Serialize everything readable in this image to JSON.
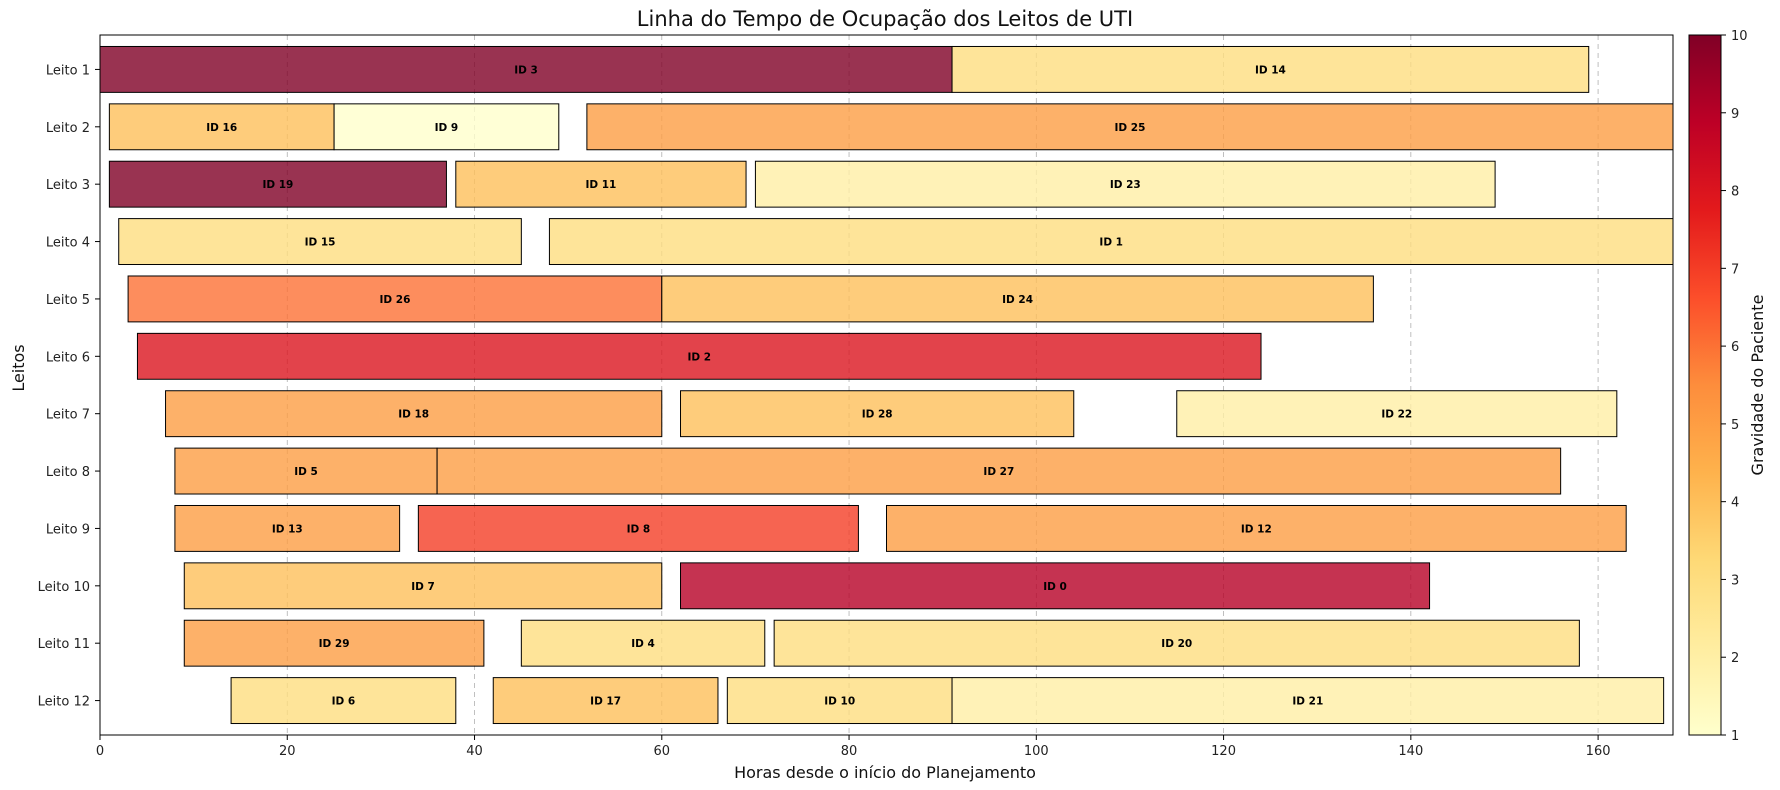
{
  "chart_data": {
    "type": "bar",
    "orientation": "horizontal-timeline",
    "title": "Linha do Tempo de Ocupação dos Leitos de UTI",
    "xlabel": "Horas desde o início do Planejamento",
    "ylabel": "Leitos",
    "xlim": [
      0,
      168
    ],
    "xticks": [
      0,
      20,
      40,
      60,
      80,
      100,
      120,
      140,
      160
    ],
    "grid": "vertical dashed",
    "categories": [
      "Leito 1",
      "Leito 2",
      "Leito 3",
      "Leito 4",
      "Leito 5",
      "Leito 6",
      "Leito 7",
      "Leito 8",
      "Leito 9",
      "Leito 10",
      "Leito 11",
      "Leito 12"
    ],
    "colorbar": {
      "label": "Gravidade do Paciente",
      "range": [
        1,
        10
      ],
      "ticks": [
        1,
        2,
        3,
        4,
        5,
        6,
        7,
        8,
        9,
        10
      ],
      "colormap": "YlOrRd"
    },
    "bars": [
      {
        "bed": "Leito 1",
        "label": "ID 3",
        "start": 0,
        "end": 91,
        "severity": 10
      },
      {
        "bed": "Leito 1",
        "label": "ID 14",
        "start": 91,
        "end": 159,
        "severity": 3
      },
      {
        "bed": "Leito 2",
        "label": "ID 16",
        "start": 1,
        "end": 25,
        "severity": 4
      },
      {
        "bed": "Leito 2",
        "label": "ID 9",
        "start": 25,
        "end": 49,
        "severity": 1
      },
      {
        "bed": "Leito 2",
        "label": "ID 25",
        "start": 52,
        "end": 168,
        "severity": 5
      },
      {
        "bed": "Leito 3",
        "label": "ID 19",
        "start": 1,
        "end": 37,
        "severity": 10
      },
      {
        "bed": "Leito 3",
        "label": "ID 11",
        "start": 38,
        "end": 69,
        "severity": 4
      },
      {
        "bed": "Leito 3",
        "label": "ID 23",
        "start": 70,
        "end": 149,
        "severity": 2
      },
      {
        "bed": "Leito 4",
        "label": "ID 15",
        "start": 2,
        "end": 45,
        "severity": 3
      },
      {
        "bed": "Leito 4",
        "label": "ID 1",
        "start": 48,
        "end": 168,
        "severity": 3
      },
      {
        "bed": "Leito 5",
        "label": "ID 26",
        "start": 3,
        "end": 60,
        "severity": 6
      },
      {
        "bed": "Leito 5",
        "label": "ID 24",
        "start": 60,
        "end": 136,
        "severity": 4
      },
      {
        "bed": "Leito 6",
        "label": "ID 2",
        "start": 4,
        "end": 124,
        "severity": 8
      },
      {
        "bed": "Leito 7",
        "label": "ID 18",
        "start": 7,
        "end": 60,
        "severity": 5
      },
      {
        "bed": "Leito 7",
        "label": "ID 28",
        "start": 62,
        "end": 104,
        "severity": 4
      },
      {
        "bed": "Leito 7",
        "label": "ID 22",
        "start": 115,
        "end": 162,
        "severity": 2
      },
      {
        "bed": "Leito 8",
        "label": "ID 5",
        "start": 8,
        "end": 36,
        "severity": 5
      },
      {
        "bed": "Leito 8",
        "label": "ID 27",
        "start": 36,
        "end": 156,
        "severity": 5
      },
      {
        "bed": "Leito 9",
        "label": "ID 13",
        "start": 8,
        "end": 32,
        "severity": 5
      },
      {
        "bed": "Leito 9",
        "label": "ID 8",
        "start": 34,
        "end": 81,
        "severity": 7
      },
      {
        "bed": "Leito 9",
        "label": "ID 12",
        "start": 84,
        "end": 163,
        "severity": 5
      },
      {
        "bed": "Leito 10",
        "label": "ID 7",
        "start": 9,
        "end": 60,
        "severity": 4
      },
      {
        "bed": "Leito 10",
        "label": "ID 0",
        "start": 62,
        "end": 142,
        "severity": 9
      },
      {
        "bed": "Leito 11",
        "label": "ID 29",
        "start": 9,
        "end": 41,
        "severity": 5
      },
      {
        "bed": "Leito 11",
        "label": "ID 4",
        "start": 45,
        "end": 71,
        "severity": 3
      },
      {
        "bed": "Leito 11",
        "label": "ID 20",
        "start": 72,
        "end": 158,
        "severity": 3
      },
      {
        "bed": "Leito 12",
        "label": "ID 6",
        "start": 14,
        "end": 38,
        "severity": 3
      },
      {
        "bed": "Leito 12",
        "label": "ID 17",
        "start": 42,
        "end": 66,
        "severity": 4
      },
      {
        "bed": "Leito 12",
        "label": "ID 10",
        "start": 67,
        "end": 91,
        "severity": 3
      },
      {
        "bed": "Leito 12",
        "label": "ID 21",
        "start": 91,
        "end": 167,
        "severity": 2
      }
    ]
  }
}
